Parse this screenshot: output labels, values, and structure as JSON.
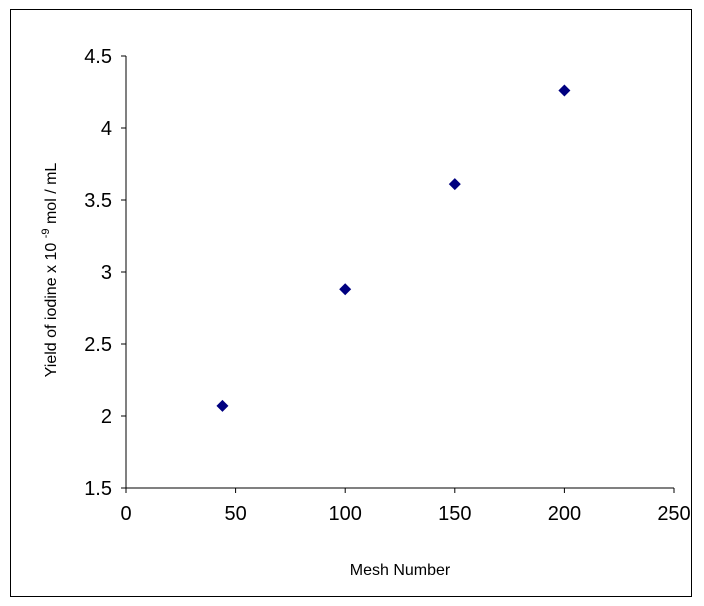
{
  "chart_data": {
    "type": "scatter",
    "title": "",
    "xlabel": "Mesh Number",
    "ylabel": {
      "prefix": "Yield of iodine x 10",
      "superscript": "-9",
      "suffix": " mol / mL"
    },
    "xlim": [
      0,
      250
    ],
    "ylim": [
      1.5,
      4.5
    ],
    "xticks": [
      0,
      50,
      100,
      150,
      200,
      250
    ],
    "yticks": [
      1.5,
      2,
      2.5,
      3,
      3.5,
      4,
      4.5
    ],
    "ytick_labels": [
      "1.5",
      "2",
      "2.5",
      "3",
      "3.5",
      "4",
      "4.5"
    ],
    "grid": false,
    "legend": "none",
    "marker": "diamond",
    "marker_color": "#000080",
    "series": [
      {
        "x": [
          44,
          100,
          150,
          200
        ],
        "y": [
          2.07,
          2.88,
          3.61,
          4.26
        ]
      }
    ]
  }
}
